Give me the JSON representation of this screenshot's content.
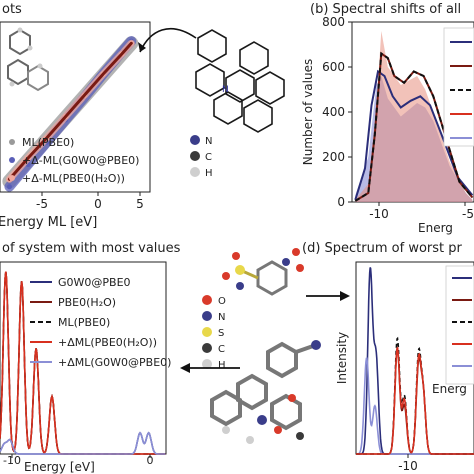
{
  "panels": {
    "a": {
      "title_fragment": "ots",
      "xlabel": "Energy ML [eV]",
      "xticks": [
        "-5",
        "0",
        "5"
      ],
      "legend": [
        "ML(PBE0)",
        "+Δ-ML(G0W0@PBE0)",
        "+Δ-ML(PBE0(H₂O))"
      ],
      "atom_legend": [
        "N",
        "C",
        "H"
      ]
    },
    "b": {
      "title": "(b) Spectral shifts of all",
      "ylabel": "Number of values",
      "xlabel": "Energ",
      "yticks": [
        "0",
        "200",
        "400",
        "600",
        "800"
      ],
      "xticks": [
        "-10",
        "-5"
      ]
    },
    "c": {
      "title": "of system with most values",
      "xlabel": "Energy [eV]",
      "xticks": [
        "-10",
        "0"
      ],
      "legend": [
        "G0W0@PBE0",
        "PBE0(H₂O)",
        "ML(PBE0)",
        "+ΔML(PBE0(H₂O))",
        "+ΔML(G0W0@PBE0)"
      ],
      "atom_legend": [
        "O",
        "N",
        "S",
        "C",
        "H"
      ]
    },
    "d": {
      "title": "(d) Spectrum of worst pr",
      "ylabel": "Intensity",
      "xlabel": "Energ",
      "xticks": [
        "-10"
      ]
    }
  },
  "colors": {
    "navy": "#2b2e7a",
    "darkred": "#7a1a12",
    "black": "#111111",
    "red": "#d8301f",
    "lavender": "#8b8fd6",
    "salmon": "#f0a89e",
    "bluefill": "#7d82cf",
    "redfill": "#e8907f"
  },
  "chart_data": [
    {
      "type": "scatter",
      "panel": "a",
      "xlabel": "Energy ML [eV]",
      "xlim": [
        -11,
        5
      ],
      "series": [
        {
          "name": "ML(PBE0)",
          "x": [
            -10,
            -8,
            -6,
            -4,
            -2,
            0,
            2,
            3
          ],
          "y": [
            -10,
            -8,
            -6,
            -4,
            -2,
            0,
            2,
            3
          ]
        },
        {
          "name": "+Δ-ML(G0W0@PBE0)",
          "x": [
            -10,
            -8,
            -6,
            -4,
            -2,
            0,
            2,
            3
          ],
          "y": [
            -10.5,
            -8.4,
            -6.3,
            -4.2,
            -2.1,
            0.1,
            2.2,
            3.2
          ]
        },
        {
          "name": "+Δ-ML(PBE0(H₂O))",
          "x": [
            -10,
            -8,
            -6,
            -4,
            -2,
            0,
            2,
            3
          ],
          "y": [
            -9.8,
            -7.8,
            -5.9,
            -3.9,
            -1.9,
            0.1,
            2.0,
            3.0
          ]
        }
      ]
    },
    {
      "type": "area",
      "panel": "b",
      "ylabel": "Number of values",
      "ylim": [
        0,
        800
      ],
      "xlim": [
        -12,
        -4.5
      ],
      "series": [
        {
          "name": "blue-hist",
          "x": [
            -11.8,
            -11.0,
            -10.5,
            -10.2,
            -9.8,
            -9.0,
            -8.0,
            -7.5,
            -7.0,
            -6.0,
            -5.0,
            -4.6
          ],
          "y": [
            30,
            200,
            520,
            560,
            460,
            380,
            440,
            420,
            360,
            160,
            40,
            10
          ]
        },
        {
          "name": "red-hist",
          "x": [
            -11.8,
            -11.0,
            -10.5,
            -10.2,
            -9.8,
            -9.0,
            -8.0,
            -7.5,
            -7.0,
            -6.0,
            -5.0,
            -4.6
          ],
          "y": [
            10,
            80,
            420,
            760,
            600,
            520,
            560,
            500,
            400,
            180,
            40,
            10
          ]
        },
        {
          "name": "navy-line",
          "x": [
            -11.8,
            -11.2,
            -10.8,
            -10.4,
            -10.0,
            -9.5,
            -9.0,
            -8.4,
            -7.8,
            -7.2,
            -6.5,
            -5.5,
            -4.6
          ],
          "y": [
            10,
            150,
            430,
            580,
            560,
            470,
            420,
            450,
            470,
            430,
            300,
            110,
            30
          ]
        },
        {
          "name": "darkred-line",
          "x": [
            -11.8,
            -11.0,
            -10.6,
            -10.2,
            -9.8,
            -9.4,
            -8.8,
            -8.2,
            -7.6,
            -7.0,
            -6.2,
            -5.4,
            -4.6
          ],
          "y": [
            5,
            40,
            300,
            660,
            640,
            560,
            530,
            580,
            560,
            470,
            280,
            90,
            20
          ]
        }
      ]
    },
    {
      "type": "line",
      "panel": "c",
      "xlabel": "Energy [eV]",
      "xlim": [
        -10.6,
        0.9
      ],
      "series": [
        {
          "name": "G0W0@PBE0",
          "peaks": [
            [
              -10.3,
              0.05
            ],
            [
              -9.9,
              0.07
            ],
            [
              -0.9,
              0.11
            ],
            [
              -0.3,
              0.11
            ]
          ]
        },
        {
          "name": "PBE0(H₂O)",
          "peaks": [
            [
              -10.2,
              0.95
            ],
            [
              -9.1,
              0.9
            ],
            [
              -8.1,
              0.55
            ],
            [
              -7.0,
              0.3
            ]
          ]
        },
        {
          "name": "ML(PBE0)",
          "peaks": [
            [
              -10.2,
              0.95
            ],
            [
              -9.1,
              0.9
            ],
            [
              -8.1,
              0.55
            ],
            [
              -7.0,
              0.3
            ]
          ]
        },
        {
          "name": "+ΔML(PBE0(H₂O))",
          "peaks": [
            [
              -10.2,
              0.95
            ],
            [
              -9.1,
              0.9
            ],
            [
              -8.1,
              0.55
            ],
            [
              -7.0,
              0.3
            ]
          ]
        },
        {
          "name": "+ΔML(G0W0@PBE0)",
          "peaks": [
            [
              -10.3,
              0.05
            ],
            [
              -9.9,
              0.07
            ],
            [
              -0.9,
              0.11
            ],
            [
              -0.3,
              0.11
            ]
          ]
        }
      ]
    },
    {
      "type": "line",
      "panel": "d",
      "ylabel": "Intensity",
      "xlim": [
        -13.5,
        -3.5
      ],
      "series": [
        {
          "name": "navy",
          "peaks": [
            [
              -12.3,
              0.95
            ],
            [
              -11.8,
              0.5
            ]
          ]
        },
        {
          "name": "lavender",
          "peaks": [
            [
              -12.6,
              0.5
            ],
            [
              -11.9,
              0.25
            ]
          ]
        },
        {
          "name": "darkred",
          "peaks": [
            [
              -10.0,
              0.55
            ],
            [
              -9.4,
              0.25
            ],
            [
              -8.2,
              0.45
            ],
            [
              -7.8,
              0.3
            ]
          ]
        },
        {
          "name": "black-dashed",
          "peaks": [
            [
              -10.0,
              0.6
            ],
            [
              -9.4,
              0.3
            ],
            [
              -8.2,
              0.5
            ],
            [
              -7.8,
              0.3
            ]
          ]
        },
        {
          "name": "red",
          "peaks": [
            [
              -10.0,
              0.55
            ],
            [
              -9.4,
              0.28
            ],
            [
              -8.2,
              0.47
            ],
            [
              -7.8,
              0.3
            ]
          ]
        }
      ]
    }
  ]
}
